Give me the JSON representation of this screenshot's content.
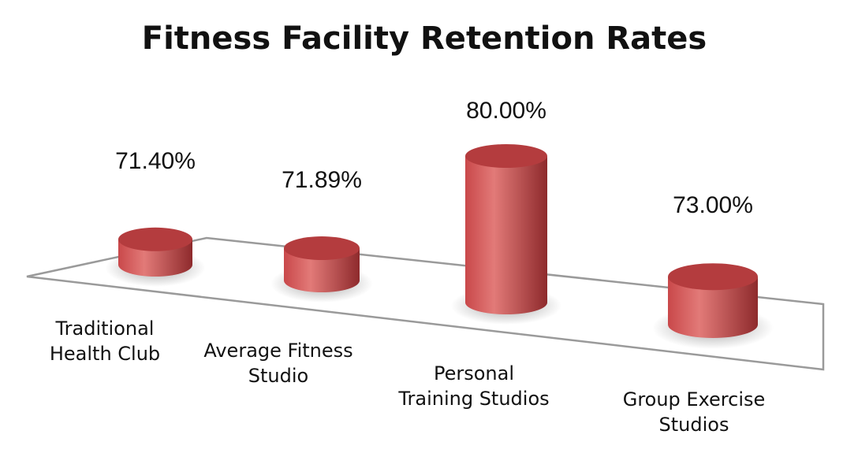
{
  "chart_data": {
    "type": "bar",
    "title": "Fitness Facility Retention Rates",
    "categories": [
      [
        "Traditional",
        "Health Club"
      ],
      [
        "Average Fitness",
        "Studio"
      ],
      [
        "Personal",
        "Training Studios"
      ],
      [
        "Group Exercise",
        "Studios"
      ]
    ],
    "values": [
      71.4,
      71.89,
      80.0,
      73.0
    ],
    "value_labels": [
      "71.40%",
      "71.89%",
      "80.00%",
      "73.00%"
    ],
    "unit": "%",
    "xlabel": "",
    "ylabel": "",
    "ylim": [
      69.6,
      80.0
    ],
    "grid": false,
    "legend": "none",
    "bar_shape": "cylinder",
    "colors": {
      "bar": "#c9484a",
      "bar_light": "#e27a78",
      "bar_dark": "#8e2a2c",
      "top": "#b43c3e",
      "floor_stroke": "#9a9a9a"
    }
  }
}
